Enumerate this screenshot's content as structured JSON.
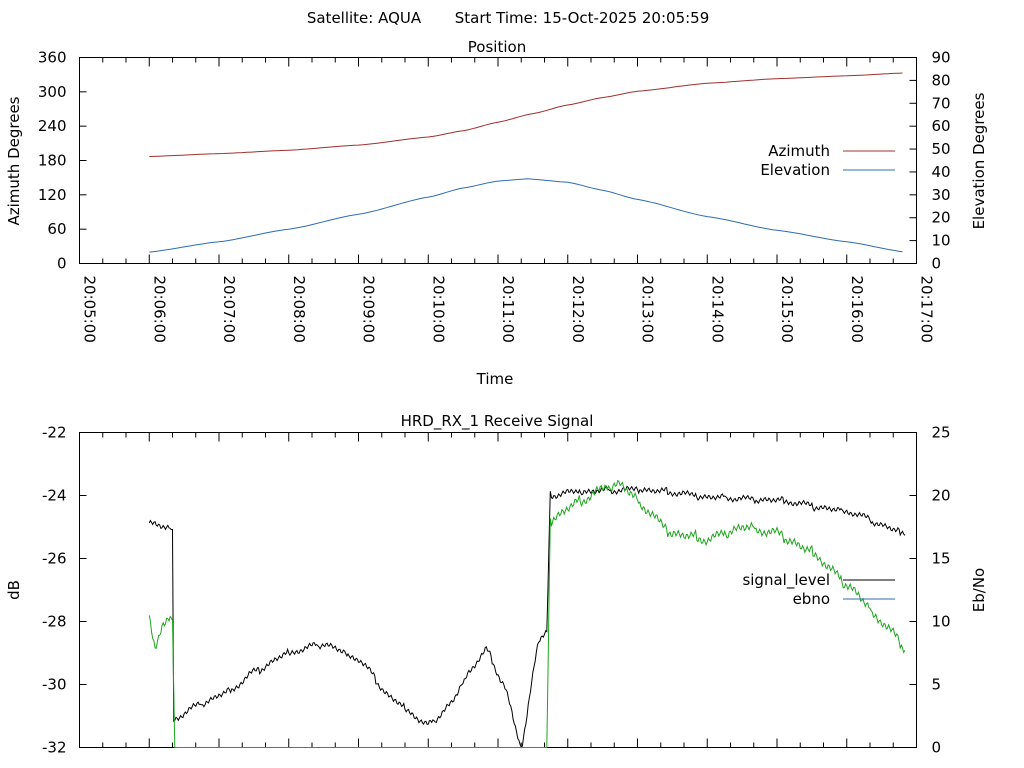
{
  "header": {
    "satellite": "Satellite: AQUA",
    "start_time": "Start Time: 15-Oct-2025 20:05:59"
  },
  "chart_data": [
    {
      "type": "line",
      "title": "Position",
      "xlabel": "Time",
      "ylabel": "Azimuth Degrees",
      "y2label": "Elevation Degrees",
      "x_range": [
        "20:05:00",
        "20:17:00"
      ],
      "x_ticks": [
        "20:05:00",
        "20:06:00",
        "20:07:00",
        "20:08:00",
        "20:09:00",
        "20:10:00",
        "20:11:00",
        "20:12:00",
        "20:13:00",
        "20:14:00",
        "20:15:00",
        "20:16:00",
        "20:17:00"
      ],
      "ylim": [
        0,
        360
      ],
      "y_ticks": [
        0,
        60,
        120,
        180,
        240,
        300,
        360
      ],
      "y2lim": [
        0,
        90
      ],
      "y2_ticks": [
        0,
        10,
        20,
        30,
        40,
        50,
        60,
        70,
        80,
        90
      ],
      "grid": false,
      "legend_position": "right-center",
      "series": [
        {
          "name": "Azimuth",
          "axis": "y",
          "color": "#a0302d",
          "x": [
            "20:06:00",
            "20:07:00",
            "20:08:00",
            "20:09:00",
            "20:10:00",
            "20:10:30",
            "20:11:00",
            "20:11:30",
            "20:12:00",
            "20:12:30",
            "20:13:00",
            "20:14:00",
            "20:15:00",
            "20:16:00",
            "20:16:50"
          ],
          "values": [
            187,
            192,
            198,
            207,
            221,
            232,
            247,
            262,
            277,
            290,
            301,
            315,
            323,
            328,
            333
          ]
        },
        {
          "name": "Elevation",
          "axis": "y2",
          "color": "#2f6db0",
          "x": [
            "20:06:00",
            "20:07:00",
            "20:08:00",
            "20:09:00",
            "20:10:00",
            "20:10:30",
            "20:11:00",
            "20:11:25",
            "20:12:00",
            "20:12:30",
            "20:13:00",
            "20:14:00",
            "20:15:00",
            "20:16:00",
            "20:16:50"
          ],
          "values": [
            5,
            9.5,
            15,
            21.5,
            29,
            33,
            36,
            37,
            35.5,
            32,
            28,
            20.5,
            14.5,
            9.5,
            5
          ]
        }
      ]
    },
    {
      "type": "line",
      "title": "HRD_RX_1 Receive Signal",
      "xlabel": "",
      "ylabel": "dB",
      "y2label": "Eb/No",
      "x_range": [
        "20:05:00",
        "20:17:00"
      ],
      "ylim": [
        -32,
        -22
      ],
      "y_ticks": [
        -32,
        -30,
        -28,
        -26,
        -24,
        -22
      ],
      "y2lim": [
        0,
        25
      ],
      "y2_ticks": [
        0,
        5,
        10,
        15,
        20,
        25
      ],
      "grid": false,
      "legend_position": "right-center",
      "series": [
        {
          "name": "signal_level",
          "axis": "y",
          "color": "#000000",
          "legend_color": "#000000",
          "x": [
            "20:06:00",
            "20:06:20",
            "20:06:21",
            "20:06:45",
            "20:07:10",
            "20:07:30",
            "20:08:00",
            "20:08:30",
            "20:09:00",
            "20:09:30",
            "20:10:00",
            "20:10:20",
            "20:10:35",
            "20:10:50",
            "20:11:05",
            "20:11:20",
            "20:11:35",
            "20:11:42",
            "20:11:45",
            "20:12:00",
            "20:12:30",
            "20:13:00",
            "20:13:30",
            "20:14:00",
            "20:15:00",
            "20:16:00",
            "20:16:50"
          ],
          "values": [
            -24.85,
            -25.1,
            -31.1,
            -30.6,
            -30.2,
            -29.6,
            -29.0,
            -28.7,
            -29.2,
            -30.5,
            -31.3,
            -30.6,
            -29.6,
            -28.9,
            -30.0,
            -32.0,
            -28.6,
            -28.4,
            -24.0,
            -23.9,
            -23.85,
            -23.8,
            -23.9,
            -24.05,
            -24.15,
            -24.5,
            -25.2
          ]
        },
        {
          "name": "ebno",
          "axis": "y2",
          "color": "#1ea51e",
          "legend_color": "#2f6db0",
          "x": [
            "20:06:00",
            "20:06:05",
            "20:06:12",
            "20:06:20",
            "20:06:22",
            "20:11:42",
            "20:11:45",
            "20:12:00",
            "20:12:30",
            "20:12:45",
            "20:13:00",
            "20:13:30",
            "20:14:00",
            "20:14:30",
            "20:15:00",
            "20:15:30",
            "20:16:00",
            "20:16:30",
            "20:16:50"
          ],
          "values": [
            10.5,
            8,
            9.5,
            10.5,
            0,
            0,
            18,
            19,
            20.5,
            21,
            19.5,
            17,
            16.5,
            17.5,
            17,
            15.5,
            13,
            10,
            8
          ]
        }
      ]
    }
  ]
}
